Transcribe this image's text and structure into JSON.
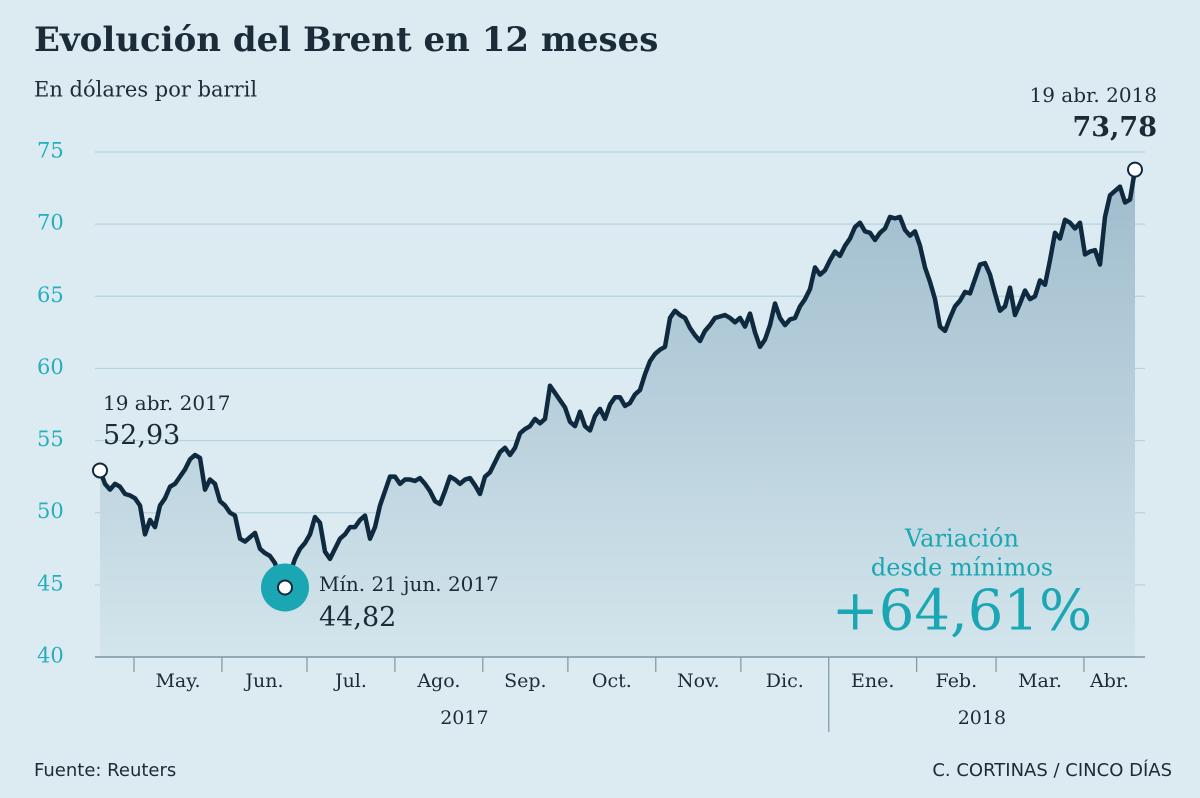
{
  "chart_data": {
    "type": "line",
    "title": "Evolución del Brent en 12 meses",
    "subtitle": "En dólares por barril",
    "source": "Fuente: Reuters",
    "credit": "C. CORTINAS / CINCO DÍAS",
    "color": "#0f2a3f",
    "grid": true,
    "ylim": [
      40,
      75
    ],
    "yticks": [
      40,
      45,
      50,
      55,
      60,
      65,
      70,
      75
    ],
    "months": [
      "May.",
      "Jun.",
      "Jul.",
      "Ago.",
      "Sep.",
      "Oct.",
      "Nov.",
      "Dic.",
      "Ene.",
      "Feb.",
      "Mar.",
      "Abr."
    ],
    "years": [
      "2017",
      "2018"
    ],
    "values": [
      52.93,
      52,
      51.6,
      52,
      51.8,
      51.3,
      51.2,
      51,
      50.5,
      48.5,
      49.5,
      49,
      50.5,
      51,
      51.8,
      52,
      52.5,
      53,
      53.7,
      54,
      53.8,
      51.6,
      52.3,
      52,
      50.8,
      50.5,
      50,
      49.8,
      48.2,
      48,
      48.3,
      48.6,
      47.5,
      47.2,
      47,
      46.5,
      45.4,
      44.82,
      45.8,
      46.8,
      47.5,
      47.9,
      48.5,
      49.7,
      49.3,
      47.3,
      46.8,
      47.5,
      48.2,
      48.5,
      49,
      49,
      49.5,
      49.8,
      48.2,
      49,
      50.5,
      51.5,
      52.5,
      52.5,
      52,
      52.3,
      52.3,
      52.2,
      52.4,
      52,
      51.5,
      50.8,
      50.6,
      51.5,
      52.5,
      52.3,
      52,
      52.3,
      52.4,
      51.9,
      51.3,
      52.5,
      52.8,
      53.5,
      54.2,
      54.5,
      54,
      54.5,
      55.5,
      55.8,
      56,
      56.5,
      56.2,
      56.5,
      58.8,
      58.3,
      57.8,
      57.3,
      56.3,
      56,
      57,
      56,
      55.7,
      56.7,
      57.2,
      56.5,
      57.5,
      58,
      58,
      57.4,
      57.6,
      58.2,
      58.5,
      59.6,
      60.5,
      61,
      61.3,
      61.5,
      63.5,
      64,
      63.7,
      63.5,
      62.8,
      62.3,
      61.9,
      62.6,
      63,
      63.5,
      63.6,
      63.7,
      63.5,
      63.2,
      63.5,
      62.9,
      63.8,
      62.5,
      61.5,
      62,
      63,
      64.5,
      63.5,
      63,
      63.4,
      63.5,
      64.3,
      64.8,
      65.5,
      67,
      66.5,
      66.8,
      67.5,
      68.1,
      67.8,
      68.5,
      69,
      69.8,
      70.1,
      69.5,
      69.4,
      68.9,
      69.4,
      69.7,
      70.5,
      70.4,
      70.5,
      69.6,
      69.2,
      69.5,
      68.5,
      67,
      66,
      64.8,
      62.9,
      62.6,
      63.5,
      64.3,
      64.7,
      65.3,
      65.2,
      66.2,
      67.2,
      67.3,
      66.5,
      65.2,
      64,
      64.3,
      65.6,
      63.7,
      64.5,
      65.4,
      64.8,
      65,
      66.1,
      65.8,
      67.5,
      69.4,
      69,
      70.3,
      70.1,
      69.7,
      70.1,
      67.9,
      68.1,
      68.2,
      67.2,
      70.5,
      72,
      72.3,
      72.6,
      71.5,
      71.7,
      73.78
    ],
    "value_labels": [
      "52,93",
      null,
      null,
      null,
      null,
      null,
      null,
      null,
      null,
      null,
      null,
      null,
      null,
      null,
      null,
      null,
      null,
      null,
      null,
      null,
      null,
      null,
      null,
      null,
      null,
      null,
      null,
      null,
      null,
      null,
      null,
      null,
      null,
      null,
      null,
      null,
      null,
      "44,82",
      null,
      null,
      null,
      null,
      null,
      null,
      null,
      null,
      null,
      null,
      null,
      null,
      null,
      null,
      null,
      null,
      null,
      null,
      null,
      null,
      null,
      null,
      null,
      null,
      null,
      null,
      null,
      null,
      null,
      null,
      null,
      null,
      null,
      null,
      null,
      null,
      null,
      null,
      null,
      null,
      null,
      null,
      null,
      null,
      null,
      null,
      null,
      null,
      null,
      null,
      null,
      null,
      null,
      null,
      null,
      null,
      null,
      null,
      null,
      null,
      null,
      null,
      null,
      null,
      null,
      null,
      null,
      null,
      null,
      null,
      null,
      null,
      null,
      null,
      null,
      null,
      null,
      null,
      null,
      null,
      null,
      null,
      null,
      null,
      null,
      null,
      null,
      null,
      null,
      null,
      null,
      null,
      null,
      null,
      null,
      null,
      null,
      null,
      null,
      null,
      null,
      null,
      null,
      null,
      null,
      null,
      null,
      null,
      null,
      null,
      null,
      null,
      null,
      null,
      null,
      null,
      null,
      null,
      null,
      null,
      null,
      null,
      null,
      null,
      null,
      null,
      null,
      null,
      null,
      null,
      null,
      null,
      null,
      null,
      null,
      null,
      null,
      null,
      null,
      null,
      null,
      null,
      null,
      null,
      null,
      null,
      null,
      null,
      null,
      null,
      null,
      null,
      null,
      null,
      null,
      null,
      null,
      null,
      null,
      null,
      null,
      null,
      null,
      null,
      null,
      null,
      null,
      null,
      null,
      "73,78"
    ],
    "annotations": [
      "19 abr. 2017",
      "Mín. 21 jun. 2017",
      "19 abr. 2018"
    ],
    "change": {
      "label": [
        "Variación",
        "desde mínimos"
      ],
      "value": 64.61,
      "value_label": "+64,61%"
    }
  }
}
